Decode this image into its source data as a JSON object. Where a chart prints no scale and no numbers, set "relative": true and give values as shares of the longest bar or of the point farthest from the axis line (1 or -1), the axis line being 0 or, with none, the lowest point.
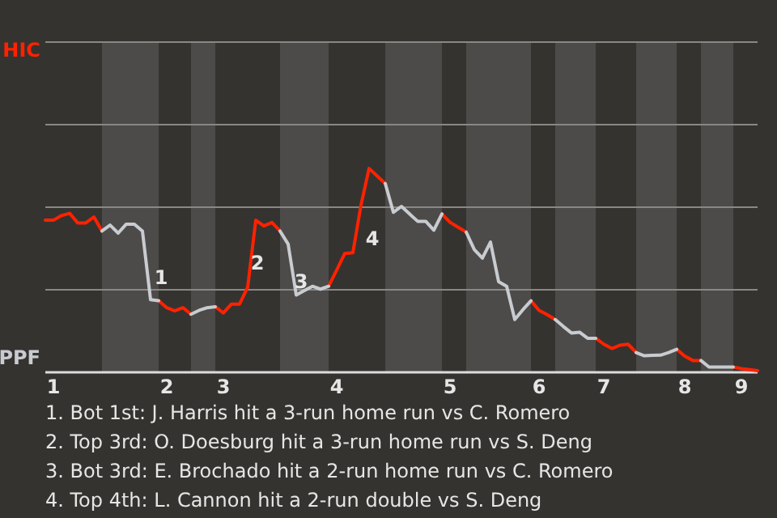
{
  "chart_data": {
    "type": "line",
    "relative": true,
    "marker": "none",
    "line_style": "solid",
    "ref_lines": [
      {
        "axis": "y",
        "value": 0.405,
        "color": "#8a8884"
      },
      {
        "axis": "y",
        "value": 0.81,
        "color": "#8a8884"
      },
      {
        "axis": "y",
        "value": 1.215,
        "color": "#8a8884"
      },
      {
        "axis": "y",
        "value": 1.62,
        "color": "#8a8884"
      }
    ],
    "categories": [
      null,
      "1",
      null,
      null,
      null,
      null,
      null,
      null,
      null,
      null,
      null,
      null,
      null,
      null,
      null,
      "2",
      null,
      null,
      null,
      null,
      null,
      null,
      "3",
      null,
      null,
      null,
      null,
      null,
      null,
      null,
      null,
      null,
      null,
      null,
      null,
      null,
      "4",
      null,
      null,
      null,
      null,
      null,
      null,
      null,
      null,
      null,
      null,
      null,
      null,
      null,
      "5",
      null,
      null,
      null,
      null,
      null,
      null,
      null,
      null,
      null,
      null,
      "6",
      null,
      null,
      null,
      null,
      null,
      null,
      null,
      "7",
      null,
      null,
      null,
      null,
      null,
      null,
      null,
      null,
      null,
      "8",
      null,
      null,
      null,
      null,
      null,
      null,
      "9",
      null,
      null
    ],
    "series": [
      {
        "color": "#ff2200",
        "values": [
          0.746,
          0.746,
          0.769,
          0.78,
          0.733,
          0.733,
          0.762,
          0.693,
          null,
          null,
          null,
          null,
          null,
          null,
          0.351,
          0.317,
          0.301,
          0.317,
          0.285,
          null,
          null,
          0.322,
          0.291,
          0.335,
          0.335,
          0.417,
          0.746,
          0.718,
          0.735,
          0.693,
          null,
          null,
          null,
          null,
          null,
          0.422,
          0.502,
          0.583,
          0.587,
          0.82,
          1,
          0.963,
          0.926,
          null,
          null,
          null,
          null,
          null,
          null,
          0.777,
          0.736,
          0.712,
          0.688,
          null,
          null,
          null,
          null,
          null,
          null,
          null,
          0.351,
          0.304,
          0.283,
          0.259,
          null,
          null,
          null,
          null,
          0.167,
          0.138,
          0.117,
          0.133,
          0.138,
          0.097,
          null,
          null,
          null,
          null,
          0.113,
          0.079,
          0.058,
          0.058,
          null,
          null,
          null,
          0.026,
          0.018,
          0.013,
          0.008
        ]
      },
      {
        "color": "#c8ccd0",
        "values": [
          null,
          null,
          null,
          null,
          null,
          null,
          null,
          0.693,
          0.722,
          0.683,
          0.727,
          0.727,
          0.693,
          0.356,
          0.351,
          null,
          null,
          null,
          0.285,
          0.304,
          0.317,
          0.322,
          null,
          null,
          null,
          null,
          null,
          null,
          null,
          0.693,
          0.629,
          0.379,
          0.401,
          0.422,
          0.408,
          0.422,
          null,
          null,
          null,
          null,
          null,
          null,
          0.926,
          0.785,
          0.814,
          0.777,
          0.741,
          0.741,
          0.697,
          0.777,
          null,
          null,
          0.688,
          0.602,
          0.56,
          0.639,
          0.445,
          0.422,
          0.259,
          0.307,
          0.351,
          null,
          null,
          0.259,
          0.225,
          0.193,
          0.197,
          0.167,
          0.167,
          null,
          null,
          null,
          null,
          0.097,
          0.081,
          0.083,
          0.084,
          0.097,
          0.113,
          null,
          null,
          0.058,
          0.026,
          0.026,
          0.026,
          0.026,
          null,
          null,
          null
        ]
      }
    ],
    "annotations": [
      "HIC",
      "PPF",
      "1",
      "2",
      "3",
      "4",
      "1. Bot 1st: J. Harris hit a 3-run home run vs C. Romero",
      "2. Top 3rd: O. Doesburg hit a 3-run home run vs S. Deng",
      "3. Bot 3rd: E. Brochado hit a 2-run home run vs C. Romero",
      "4. Top 4th: L. Cannon hit a 2-run double vs S. Deng"
    ]
  }
}
